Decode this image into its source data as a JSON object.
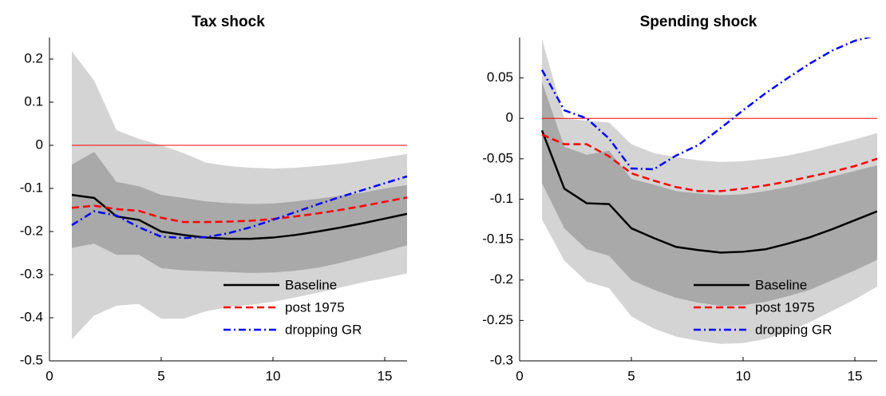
{
  "chart_data": [
    {
      "type": "line",
      "title": "Tax shock",
      "x": [
        1,
        2,
        3,
        4,
        5,
        6,
        7,
        8,
        9,
        10,
        11,
        12,
        13,
        14,
        15,
        16
      ],
      "xlim": [
        0,
        16
      ],
      "xticks": [
        0,
        5,
        10,
        15
      ],
      "ylim": [
        -0.5,
        0.25
      ],
      "yticks": [
        -0.5,
        -0.4,
        -0.3,
        -0.2,
        -0.1,
        0,
        0.1,
        0.2
      ],
      "hline": 0,
      "hline_color": "#ff0000",
      "legend": "lower right",
      "bands": [
        {
          "color": "#d4d4d4",
          "upper": [
            0.218,
            0.15,
            0.035,
            0.015,
            0.0,
            -0.018,
            -0.04,
            -0.048,
            -0.052,
            -0.054,
            -0.052,
            -0.048,
            -0.043,
            -0.036,
            -0.028,
            -0.02
          ],
          "lower": [
            -0.45,
            -0.395,
            -0.372,
            -0.368,
            -0.402,
            -0.402,
            -0.385,
            -0.375,
            -0.37,
            -0.363,
            -0.353,
            -0.342,
            -0.33,
            -0.318,
            -0.308,
            -0.297
          ]
        },
        {
          "color": "#a9a9a9",
          "upper": [
            -0.045,
            -0.015,
            -0.085,
            -0.095,
            -0.115,
            -0.122,
            -0.13,
            -0.134,
            -0.136,
            -0.135,
            -0.13,
            -0.124,
            -0.117,
            -0.11,
            -0.1,
            -0.092
          ],
          "lower": [
            -0.238,
            -0.228,
            -0.254,
            -0.254,
            -0.285,
            -0.29,
            -0.292,
            -0.294,
            -0.296,
            -0.295,
            -0.291,
            -0.284,
            -0.273,
            -0.26,
            -0.246,
            -0.232
          ]
        }
      ],
      "series": [
        {
          "name": "Baseline",
          "color": "#000000",
          "style": "solid",
          "values": [
            -0.115,
            -0.122,
            -0.165,
            -0.173,
            -0.2,
            -0.208,
            -0.214,
            -0.217,
            -0.217,
            -0.214,
            -0.208,
            -0.2,
            -0.191,
            -0.181,
            -0.17,
            -0.159
          ]
        },
        {
          "name": "post 1975",
          "color": "#ff0000",
          "style": "dashed",
          "values": [
            -0.145,
            -0.14,
            -0.148,
            -0.152,
            -0.168,
            -0.178,
            -0.178,
            -0.177,
            -0.175,
            -0.171,
            -0.165,
            -0.158,
            -0.15,
            -0.141,
            -0.131,
            -0.121
          ]
        },
        {
          "name": "dropping GR",
          "color": "#0000ff",
          "style": "dashdot",
          "values": [
            -0.185,
            -0.153,
            -0.163,
            -0.19,
            -0.212,
            -0.215,
            -0.213,
            -0.204,
            -0.19,
            -0.173,
            -0.155,
            -0.137,
            -0.12,
            -0.104,
            -0.088,
            -0.072
          ]
        }
      ]
    },
    {
      "type": "line",
      "title": "Spending shock",
      "x": [
        1,
        2,
        3,
        4,
        5,
        6,
        7,
        8,
        9,
        10,
        11,
        12,
        13,
        14,
        15,
        16
      ],
      "xlim": [
        0,
        16
      ],
      "xticks": [
        0,
        5,
        10,
        15
      ],
      "ylim": [
        -0.3,
        0.1
      ],
      "yticks": [
        -0.3,
        -0.25,
        -0.2,
        -0.15,
        -0.1,
        -0.05,
        0,
        0.05
      ],
      "hline": 0,
      "hline_color": "#ff0000",
      "legend": "lower right",
      "bands": [
        {
          "color": "#d4d4d4",
          "upper": [
            0.098,
            0.0,
            -0.003,
            -0.005,
            -0.032,
            -0.043,
            -0.048,
            -0.052,
            -0.054,
            -0.053,
            -0.05,
            -0.046,
            -0.04,
            -0.033,
            -0.026,
            -0.018
          ],
          "lower": [
            -0.125,
            -0.176,
            -0.202,
            -0.21,
            -0.245,
            -0.26,
            -0.27,
            -0.275,
            -0.279,
            -0.278,
            -0.273,
            -0.264,
            -0.252,
            -0.238,
            -0.224,
            -0.208
          ]
        },
        {
          "color": "#a9a9a9",
          "upper": [
            0.045,
            -0.035,
            -0.045,
            -0.04,
            -0.075,
            -0.082,
            -0.09,
            -0.093,
            -0.095,
            -0.094,
            -0.09,
            -0.085,
            -0.079,
            -0.072,
            -0.065,
            -0.058
          ],
          "lower": [
            -0.08,
            -0.136,
            -0.162,
            -0.17,
            -0.2,
            -0.212,
            -0.222,
            -0.228,
            -0.232,
            -0.231,
            -0.227,
            -0.22,
            -0.212,
            -0.2,
            -0.188,
            -0.175
          ]
        }
      ],
      "series": [
        {
          "name": "Baseline",
          "color": "#000000",
          "style": "solid",
          "values": [
            -0.015,
            -0.087,
            -0.105,
            -0.106,
            -0.136,
            -0.148,
            -0.159,
            -0.163,
            -0.166,
            -0.165,
            -0.162,
            -0.155,
            -0.147,
            -0.137,
            -0.126,
            -0.115
          ]
        },
        {
          "name": "post 1975",
          "color": "#ff0000",
          "style": "dashed",
          "values": [
            -0.02,
            -0.032,
            -0.032,
            -0.047,
            -0.068,
            -0.077,
            -0.085,
            -0.09,
            -0.09,
            -0.087,
            -0.083,
            -0.078,
            -0.072,
            -0.066,
            -0.059,
            -0.05
          ]
        },
        {
          "name": "dropping GR",
          "color": "#0000ff",
          "style": "dashdot",
          "values": [
            0.06,
            0.01,
            0.0,
            -0.025,
            -0.062,
            -0.063,
            -0.046,
            -0.033,
            -0.012,
            0.01,
            0.031,
            0.05,
            0.068,
            0.084,
            0.096,
            0.103
          ]
        }
      ]
    }
  ]
}
